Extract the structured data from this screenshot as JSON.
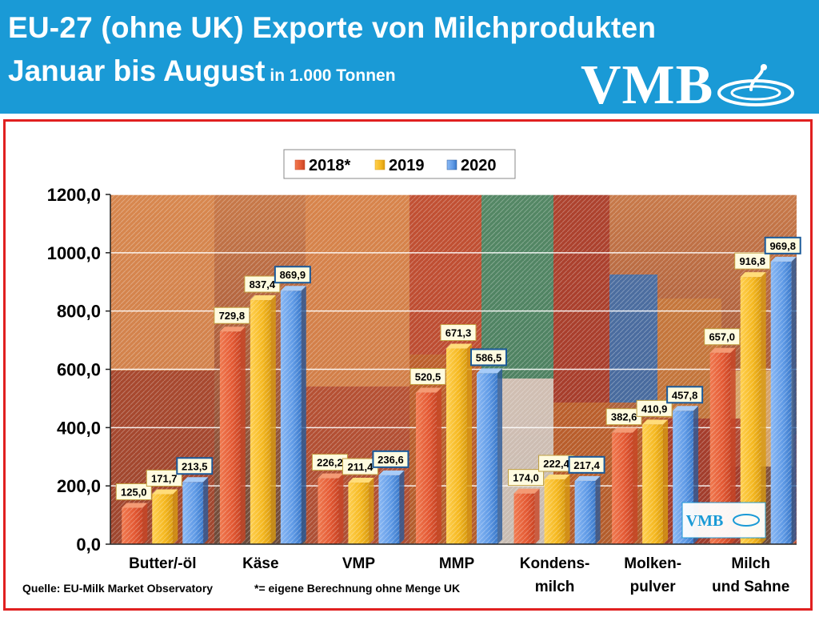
{
  "header": {
    "title_line1": "EU-27 (ohne UK) Exporte von Milchprodukten",
    "title_line2": "Januar bis August",
    "unit": "in 1.000 Tonnen",
    "logo": "VMB"
  },
  "footer": {
    "source": "Quelle: EU-Milk Market Observatory",
    "note": "*= eigene Berechnung ohne Menge UK"
  },
  "colors": {
    "header_bg": "#1a9ad6",
    "frame_border": "#e02020",
    "series_2018": "#e8603c",
    "series_2019": "#f5b820",
    "series_2020": "#4f8fe0"
  },
  "chart_data": {
    "type": "bar",
    "categories": [
      [
        "Butter/-öl"
      ],
      [
        "Käse"
      ],
      [
        "VMP"
      ],
      [
        "MMP"
      ],
      [
        "Kondens-",
        "milch"
      ],
      [
        "Molken-",
        "pulver"
      ],
      [
        "Milch",
        "und Sahne"
      ]
    ],
    "series": [
      {
        "name": "2018*",
        "values": [
          125.0,
          729.8,
          226.2,
          520.5,
          174.0,
          382.6,
          657.0
        ],
        "labels": [
          "125,0",
          "729,8",
          "226,2",
          "520,5",
          "174,0",
          "382,6",
          "657,0"
        ]
      },
      {
        "name": "2019",
        "values": [
          171.7,
          837.4,
          211.4,
          671.3,
          222.4,
          410.9,
          916.8
        ],
        "labels": [
          "171,7",
          "837,4",
          "211,4",
          "671,3",
          "222,4",
          "410,9",
          "916,8"
        ]
      },
      {
        "name": "2020",
        "values": [
          213.5,
          869.9,
          236.6,
          586.5,
          217.4,
          457.8,
          969.8
        ],
        "labels": [
          "213,5",
          "869,9",
          "236,6",
          "586,5",
          "217,4",
          "457,8",
          "969,8"
        ]
      }
    ],
    "yticks": [
      "0,0",
      "200,0",
      "400,0",
      "600,0",
      "800,0",
      "1000,0",
      "1200,0"
    ],
    "ylim": [
      0,
      1200
    ],
    "grid": true,
    "legend": "top-center"
  }
}
